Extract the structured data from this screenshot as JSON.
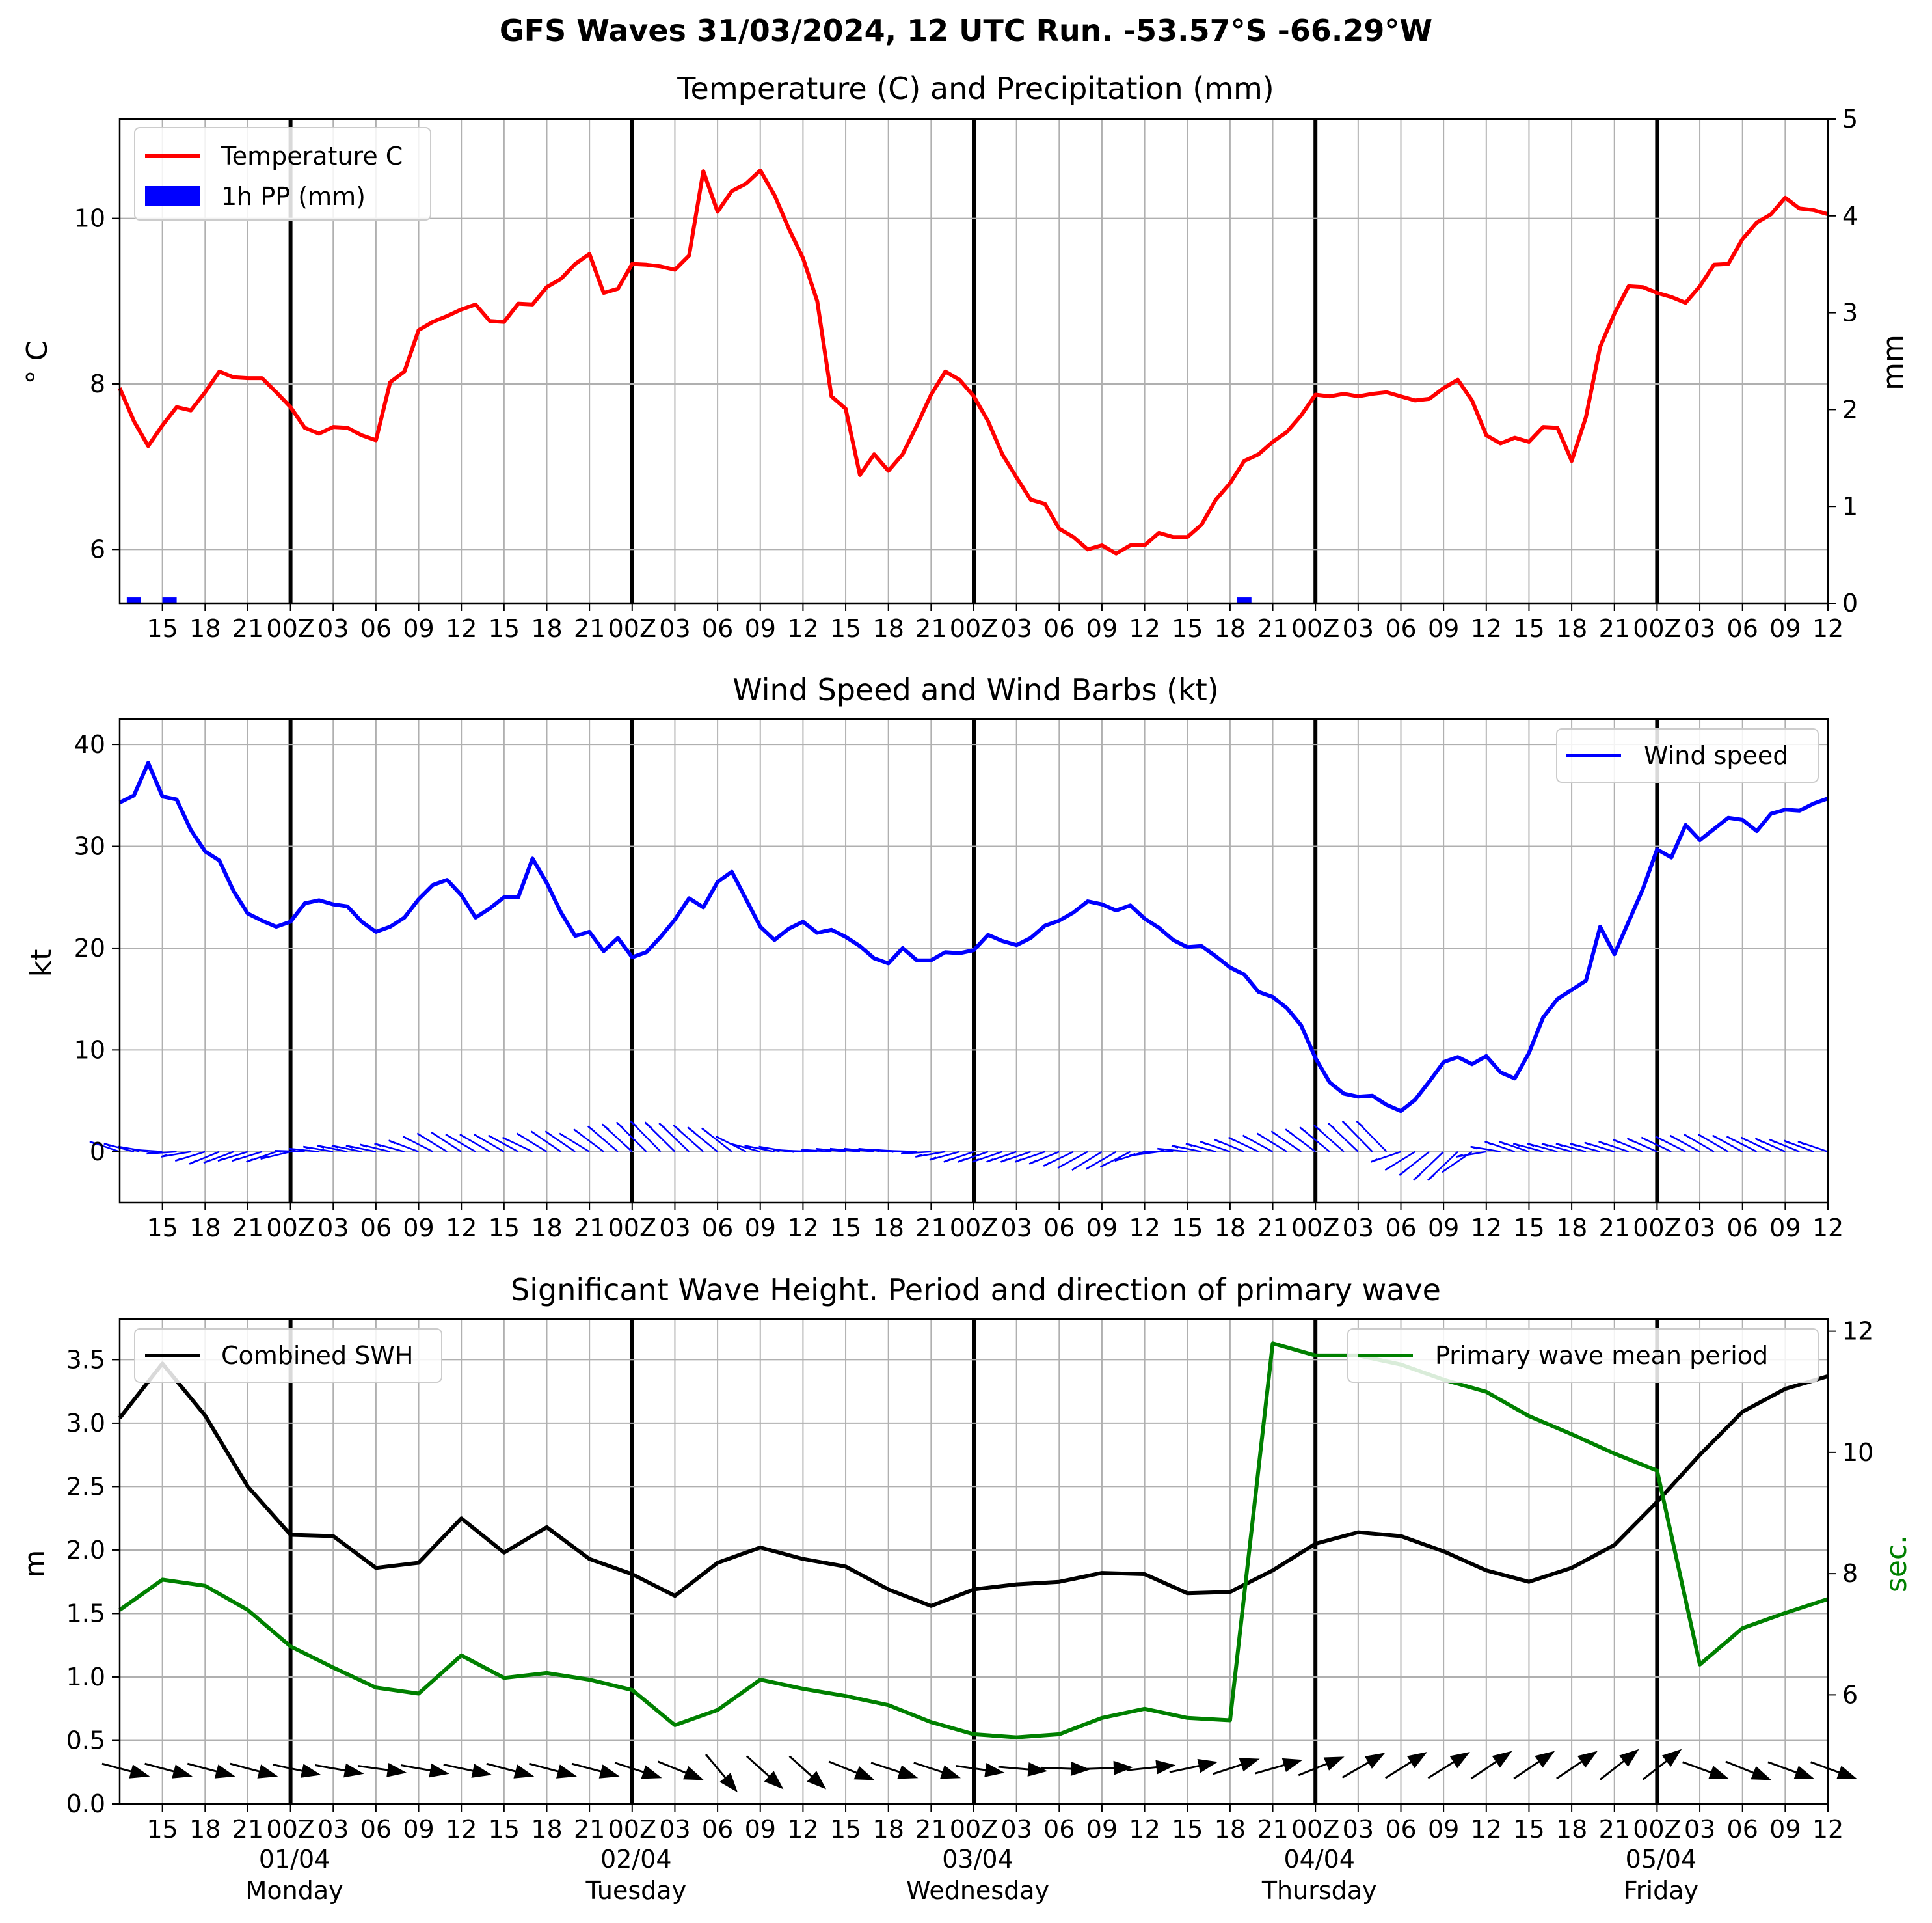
{
  "figure": {
    "title": "GFS Waves 31/03/2024, 12 UTC Run. -53.57°S -66.29°W"
  },
  "x_ticks": [
    "15",
    "18",
    "21",
    "00Z",
    "03",
    "06",
    "09",
    "12",
    "15",
    "18",
    "21",
    "00Z",
    "03",
    "06",
    "09",
    "12",
    "15",
    "18",
    "21",
    "00Z",
    "03",
    "06",
    "09",
    "12",
    "15",
    "18",
    "21",
    "00Z",
    "03",
    "06",
    "09",
    "12",
    "15",
    "18",
    "21",
    "00Z",
    "03",
    "06",
    "09",
    "12"
  ],
  "day_labels": [
    {
      "date": "01/04",
      "day": "Monday"
    },
    {
      "date": "02/04",
      "day": "Tuesday"
    },
    {
      "date": "03/04",
      "day": "Wednesday"
    },
    {
      "date": "04/04",
      "day": "Thursday"
    },
    {
      "date": "05/04",
      "day": "Friday"
    }
  ],
  "chart_data": [
    {
      "type": "line",
      "title": "Temperature (C) and Precipitation (mm)",
      "ylabel": "$^\\circ$C",
      "ylabel_display": "° C",
      "y2label": "mm",
      "xlim_hours": [
        0,
        120
      ],
      "ylim": [
        5.35,
        11.2
      ],
      "y_ticks": [
        "6",
        "8",
        "10"
      ],
      "y2lim": [
        0,
        5
      ],
      "y2_ticks": [
        "0",
        "1",
        "2",
        "3",
        "4",
        "5"
      ],
      "legend": {
        "position": "upper left",
        "entries": [
          "Temperature C",
          "1h PP (mm)"
        ]
      },
      "series": [
        {
          "name": "Temperature C",
          "color": "#ff0000",
          "x_hours": [
            0,
            1,
            2,
            3,
            4,
            5,
            6,
            7,
            8,
            9,
            10,
            11,
            12,
            13,
            14,
            15,
            16,
            17,
            18,
            19,
            20,
            21,
            22,
            23,
            24,
            25,
            26,
            27,
            28,
            29,
            30,
            31,
            32,
            33,
            34,
            35,
            36,
            37,
            38,
            39,
            40,
            41,
            42,
            43,
            44,
            45,
            46,
            47,
            48,
            49,
            50,
            51,
            52,
            53,
            54,
            55,
            56,
            57,
            58,
            59,
            60,
            61,
            62,
            63,
            64,
            65,
            66,
            67,
            68,
            69,
            70,
            71,
            72,
            73,
            74,
            75,
            76,
            77,
            78,
            79,
            80,
            81,
            82,
            83,
            84,
            85,
            86,
            87,
            88,
            89,
            90,
            91,
            92,
            93,
            94,
            95,
            96,
            97,
            98,
            99,
            100,
            101,
            102,
            103,
            104,
            105,
            106,
            107,
            108,
            109,
            110,
            111,
            112,
            113,
            114,
            115,
            116,
            117,
            118,
            119,
            120
          ],
          "values": [
            7.95,
            7.55,
            7.25,
            7.5,
            7.72,
            7.68,
            7.9,
            8.15,
            8.08,
            8.07,
            8.07,
            7.9,
            7.72,
            7.47,
            7.4,
            7.48,
            7.47,
            7.38,
            7.32,
            8.02,
            8.15,
            8.65,
            8.75,
            8.82,
            8.9,
            8.96,
            8.76,
            8.75,
            8.97,
            8.96,
            9.17,
            9.27,
            9.45,
            9.57,
            9.1,
            9.15,
            9.45,
            9.44,
            9.42,
            9.38,
            9.55,
            10.57,
            10.08,
            10.33,
            10.42,
            10.58,
            10.28,
            9.88,
            9.52,
            9.0,
            7.85,
            7.7,
            6.9,
            7.15,
            6.95,
            7.15,
            7.5,
            7.87,
            8.15,
            8.05,
            7.85,
            7.55,
            7.15,
            6.87,
            6.6,
            6.55,
            6.25,
            6.15,
            6.0,
            6.05,
            5.95,
            6.05,
            6.05,
            6.2,
            6.15,
            6.15,
            6.3,
            6.6,
            6.8,
            7.07,
            7.15,
            7.3,
            7.42,
            7.62,
            7.87,
            7.85,
            7.88,
            7.85,
            7.88,
            7.9,
            7.85,
            7.8,
            7.82,
            7.95,
            8.05,
            7.8,
            7.38,
            7.28,
            7.35,
            7.3,
            7.48,
            7.47,
            7.07,
            7.6,
            8.45,
            8.85,
            9.18,
            9.17,
            9.1,
            9.05,
            8.98,
            9.18,
            9.44,
            9.45,
            9.75,
            9.95,
            10.05,
            10.25,
            10.12,
            10.1,
            10.05
          ]
        },
        {
          "name": "1h PP (mm)",
          "type": "bar",
          "color": "#0000ff",
          "x_hours": [
            1,
            3.5,
            79
          ],
          "values_mm": [
            0.06,
            0.06,
            0.06
          ]
        }
      ]
    },
    {
      "type": "line",
      "title": "Wind Speed and Wind Barbs (kt)",
      "ylabel": "kt",
      "xlim_hours": [
        0,
        120
      ],
      "ylim": [
        -5,
        42.5
      ],
      "y_ticks": [
        "0",
        "10",
        "20",
        "30",
        "40"
      ],
      "grid": true,
      "legend": {
        "position": "upper right",
        "entries": [
          "Wind speed"
        ]
      },
      "series": [
        {
          "name": "Wind speed",
          "color": "#0000ff",
          "x_hours": [
            0,
            1,
            2,
            3,
            4,
            5,
            6,
            7,
            8,
            9,
            10,
            11,
            12,
            13,
            14,
            15,
            16,
            17,
            18,
            19,
            20,
            21,
            22,
            23,
            24,
            25,
            26,
            27,
            28,
            29,
            30,
            31,
            32,
            33,
            34,
            35,
            36,
            37,
            38,
            39,
            40,
            41,
            42,
            43,
            44,
            45,
            46,
            47,
            48,
            49,
            50,
            51,
            52,
            53,
            54,
            55,
            56,
            57,
            58,
            59,
            60,
            61,
            62,
            63,
            64,
            65,
            66,
            67,
            68,
            69,
            70,
            71,
            72,
            73,
            74,
            75,
            76,
            77,
            78,
            79,
            80,
            81,
            82,
            83,
            84,
            85,
            86,
            87,
            88,
            89,
            90,
            91,
            92,
            93,
            94,
            95,
            96,
            97,
            98,
            99,
            100,
            101,
            102,
            103,
            104,
            105,
            106,
            107,
            108,
            109,
            110,
            111,
            112,
            113,
            114,
            115,
            116,
            117,
            118,
            119,
            120
          ],
          "values": [
            34.3,
            35.0,
            38.2,
            34.9,
            34.6,
            31.6,
            29.5,
            28.6,
            25.6,
            23.4,
            22.7,
            22.1,
            22.6,
            24.4,
            24.7,
            24.3,
            24.1,
            22.6,
            21.6,
            22.1,
            23.0,
            24.8,
            26.2,
            26.7,
            25.2,
            23.0,
            23.9,
            25.0,
            25.0,
            28.8,
            26.4,
            23.5,
            21.2,
            21.6,
            19.7,
            21.0,
            19.1,
            19.6,
            21.1,
            22.8,
            24.9,
            24.0,
            26.5,
            27.5,
            24.8,
            22.1,
            20.8,
            21.9,
            22.6,
            21.5,
            21.8,
            21.1,
            20.2,
            19.0,
            18.5,
            20.0,
            18.8,
            18.8,
            19.6,
            19.5,
            19.8,
            21.3,
            20.7,
            20.3,
            21.0,
            22.2,
            22.7,
            23.5,
            24.6,
            24.3,
            23.7,
            24.2,
            22.9,
            22.0,
            20.8,
            20.1,
            20.2,
            19.2,
            18.1,
            17.4,
            15.7,
            15.2,
            14.1,
            12.4,
            9.2,
            6.8,
            5.7,
            5.4,
            5.5,
            4.6,
            4.0,
            5.1,
            6.9,
            8.8,
            9.3,
            8.6,
            9.4,
            7.8,
            7.2,
            9.7,
            13.2,
            15.0,
            15.9,
            16.8,
            22.1,
            19.4,
            22.6,
            25.8,
            29.7,
            28.9,
            32.1,
            30.6,
            31.7,
            32.8,
            32.6,
            31.5,
            33.2,
            33.6,
            33.5,
            34.2,
            34.7
          ]
        }
      ],
      "barbs": {
        "color": "#0000ff",
        "x_hours": [
          0,
          1,
          2,
          3,
          4,
          5,
          6,
          7,
          8,
          9,
          10,
          11,
          12,
          13,
          14,
          15,
          16,
          17,
          18,
          19,
          20,
          21,
          22,
          23,
          24,
          25,
          26,
          27,
          28,
          29,
          30,
          31,
          32,
          33,
          34,
          35,
          36,
          37,
          38,
          39,
          40,
          41,
          42,
          43,
          44,
          45,
          46,
          47,
          48,
          49,
          50,
          51,
          52,
          53,
          54,
          55,
          56,
          57,
          58,
          59,
          60,
          61,
          62,
          63,
          64,
          65,
          66,
          67,
          68,
          69,
          70,
          71,
          72,
          73,
          74,
          75,
          76,
          77,
          78,
          79,
          80,
          81,
          82,
          83,
          84,
          85,
          86,
          87,
          88,
          89,
          90,
          91,
          92,
          93,
          94,
          95,
          96,
          97,
          98,
          99,
          100,
          101,
          102,
          103,
          104,
          105,
          106,
          107,
          108,
          109,
          110,
          111,
          112,
          113,
          114,
          115,
          116,
          117,
          118,
          119,
          120
        ],
        "flag_side_kt": [
          1.0,
          0.8,
          0.5,
          0.2,
          -0.2,
          -0.5,
          -0.9,
          -1.2,
          -1.1,
          -0.9,
          -0.9,
          -1.0,
          -0.7,
          0.1,
          0.3,
          0.5,
          0.6,
          0.6,
          0.6,
          0.7,
          0.8,
          1.1,
          1.5,
          1.8,
          1.9,
          1.7,
          1.7,
          1.7,
          1.6,
          1.4,
          1.8,
          2.0,
          2.0,
          1.8,
          2.2,
          2.5,
          2.7,
          2.9,
          3.0,
          2.9,
          2.8,
          2.6,
          2.4,
          2.3,
          1.5,
          0.8,
          0.6,
          0.5,
          0.2,
          0.1,
          0.2,
          0.3,
          0.3,
          0.3,
          0.3,
          0.2,
          0.1,
          -0.2,
          -0.5,
          -0.8,
          -1.0,
          -1.0,
          -1.0,
          -1.0,
          -1.0,
          -1.0,
          -1.2,
          -1.4,
          -1.6,
          -1.8,
          -1.7,
          -1.5,
          -0.9,
          -0.4,
          0.0,
          0.3,
          0.6,
          0.8,
          1.0,
          1.2,
          1.4,
          1.6,
          1.8,
          2.0,
          2.2,
          2.4,
          2.6,
          2.8,
          3.0,
          3.0,
          -1.0,
          -1.8,
          -2.3,
          -2.8,
          -2.8,
          -2.0,
          -0.5,
          0.5,
          1.0,
          1.0,
          0.8,
          0.8,
          0.8,
          0.8,
          0.8,
          0.9,
          1.0,
          1.2,
          1.3,
          1.4,
          1.5,
          1.6,
          1.7,
          1.7,
          1.6,
          1.5,
          1.4,
          1.3,
          1.2,
          1.1,
          1.0
        ]
      }
    },
    {
      "type": "line",
      "title": "Significant Wave Height. Period and direction of primary wave",
      "ylabel": "m",
      "y2label": "sec.",
      "xlim_hours": [
        0,
        120
      ],
      "ylim": [
        0.0,
        3.82
      ],
      "y_ticks": [
        "0.0",
        "0.5",
        "1.0",
        "1.5",
        "2.0",
        "2.5",
        "3.0",
        "3.5"
      ],
      "y2lim": [
        4.2,
        12.2
      ],
      "y2_ticks": [
        "6",
        "8",
        "10",
        "12"
      ],
      "grid": true,
      "legend": [
        {
          "position": "upper left",
          "entries": [
            "Combined SWH"
          ]
        },
        {
          "position": "upper right",
          "entries": [
            "Primary wave mean period"
          ]
        }
      ],
      "series": [
        {
          "name": "Combined SWH",
          "color": "#000000",
          "axis": "left",
          "x_hours": [
            0,
            3,
            6,
            9,
            12,
            15,
            18,
            21,
            24,
            27,
            30,
            33,
            36,
            39,
            42,
            45,
            48,
            51,
            54,
            57,
            60,
            63,
            66,
            69,
            72,
            75,
            78,
            81,
            84,
            87,
            90,
            93,
            96,
            99,
            102,
            105,
            108,
            111,
            114,
            117,
            120
          ],
          "values": [
            3.04,
            3.47,
            3.06,
            2.5,
            2.12,
            2.11,
            1.86,
            1.9,
            2.25,
            1.98,
            2.18,
            1.93,
            1.81,
            1.64,
            1.9,
            2.02,
            1.93,
            1.87,
            1.69,
            1.56,
            1.69,
            1.73,
            1.75,
            1.82,
            1.81,
            1.66,
            1.67,
            1.84,
            2.05,
            2.14,
            2.11,
            1.99,
            1.84,
            1.75,
            1.86,
            2.04,
            2.38,
            2.75,
            3.09,
            3.27,
            3.37
          ]
        },
        {
          "name": "Primary wave mean period",
          "color": "#008000",
          "axis": "right",
          "x_hours": [
            0,
            3,
            6,
            9,
            12,
            15,
            18,
            21,
            24,
            27,
            30,
            33,
            36,
            39,
            42,
            45,
            48,
            51,
            54,
            57,
            60,
            63,
            66,
            69,
            72,
            75,
            78,
            81,
            84,
            87,
            90,
            93,
            96,
            99,
            102,
            105,
            108,
            111,
            114,
            117,
            120
          ],
          "values": [
            7.4,
            7.9,
            7.8,
            7.4,
            6.8,
            6.45,
            6.12,
            6.02,
            6.65,
            6.28,
            6.36,
            6.25,
            6.08,
            5.5,
            5.75,
            6.25,
            6.1,
            5.98,
            5.83,
            5.55,
            5.35,
            5.3,
            5.35,
            5.62,
            5.77,
            5.62,
            5.58,
            11.8,
            11.6,
            11.6,
            11.45,
            11.2,
            11.0,
            10.6,
            10.3,
            9.98,
            9.7,
            6.5,
            7.1,
            7.35,
            7.58
          ]
        }
      ],
      "direction_arrows": {
        "color": "#000000",
        "x_hours": [
          0,
          3,
          6,
          9,
          12,
          15,
          18,
          21,
          24,
          27,
          30,
          33,
          36,
          39,
          42,
          45,
          48,
          51,
          54,
          57,
          60,
          63,
          66,
          69,
          72,
          75,
          78,
          81,
          84,
          87,
          90,
          93,
          96,
          99,
          102,
          105,
          108,
          111,
          114,
          117,
          120
        ],
        "heading_deg": [
          15,
          15,
          15,
          15,
          12,
          10,
          8,
          10,
          12,
          15,
          15,
          15,
          18,
          22,
          50,
          42,
          42,
          22,
          18,
          18,
          8,
          5,
          2,
          -2,
          -6,
          -12,
          -18,
          -16,
          -22,
          -30,
          -32,
          -32,
          -34,
          -34,
          -34,
          -38,
          -38,
          20,
          22,
          20,
          20
        ]
      }
    }
  ]
}
